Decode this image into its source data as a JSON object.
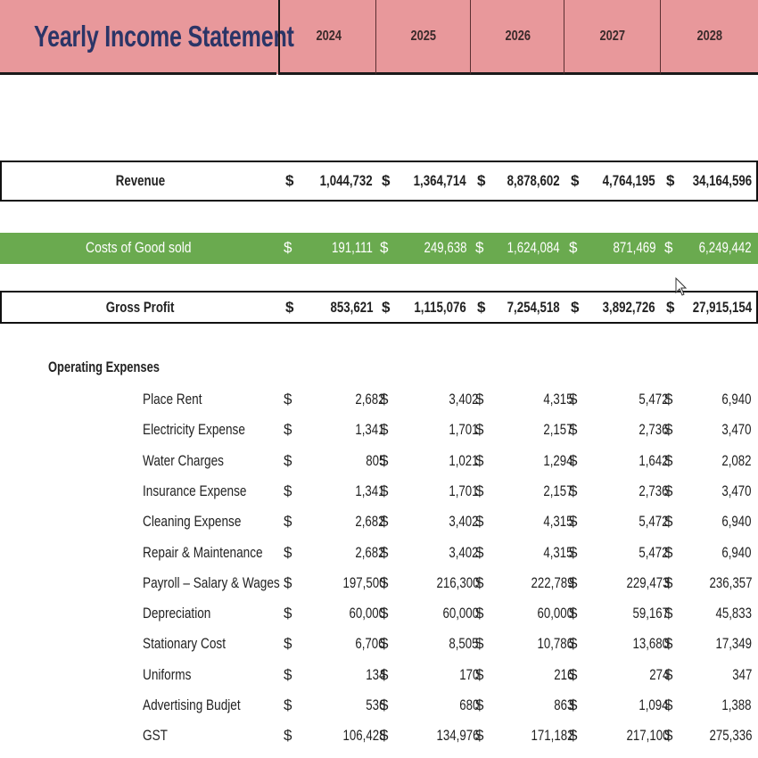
{
  "header": {
    "title": "Yearly Income Statement",
    "years": [
      "2024",
      "2025",
      "2026",
      "2027",
      "2028"
    ]
  },
  "colors": {
    "header_bg": "#e8989b",
    "title_text": "#2b3567",
    "cogs_bg": "#6aaa4f"
  },
  "currency_symbol": "$",
  "summary": {
    "revenue": {
      "label": "Revenue",
      "values": [
        "1,044,732",
        "1,364,714",
        "8,878,602",
        "4,764,195",
        "34,164,596"
      ]
    },
    "cogs": {
      "label": "Costs of Good sold",
      "values": [
        "191,111",
        "249,638",
        "1,624,084",
        "871,469",
        "6,249,442"
      ]
    },
    "gross_profit": {
      "label": "Gross Profit",
      "values": [
        "853,621",
        "1,115,076",
        "7,254,518",
        "3,892,726",
        "27,915,154"
      ]
    }
  },
  "operating_expenses": {
    "title": "Operating Expenses",
    "rows": [
      {
        "label": "Place Rent",
        "values": [
          "2,682",
          "3,402",
          "4,315",
          "5,472",
          "6,940"
        ]
      },
      {
        "label": "Electricity Expense",
        "values": [
          "1,341",
          "1,701",
          "2,157",
          "2,736",
          "3,470"
        ]
      },
      {
        "label": "Water Charges",
        "values": [
          "805",
          "1,021",
          "1,294",
          "1,642",
          "2,082"
        ]
      },
      {
        "label": "Insurance Expense",
        "values": [
          "1,341",
          "1,701",
          "2,157",
          "2,736",
          "3,470"
        ]
      },
      {
        "label": "Cleaning Expense",
        "values": [
          "2,682",
          "3,402",
          "4,315",
          "5,472",
          "6,940"
        ]
      },
      {
        "label": "Repair & Maintenance",
        "values": [
          "2,682",
          "3,402",
          "4,315",
          "5,472",
          "6,940"
        ]
      },
      {
        "label": "Payroll – Salary & Wages",
        "values": [
          "197,500",
          "216,300",
          "222,789",
          "229,473",
          "236,357"
        ]
      },
      {
        "label": "Depreciation",
        "values": [
          "60,000",
          "60,000",
          "60,000",
          "59,167",
          "45,833"
        ]
      },
      {
        "label": "Stationary  Cost",
        "values": [
          "6,706",
          "8,505",
          "10,786",
          "13,680",
          "17,349"
        ]
      },
      {
        "label": "Uniforms",
        "values": [
          "134",
          "170",
          "216",
          "274",
          "347"
        ]
      },
      {
        "label": "Advertising Budjet",
        "values": [
          "536",
          "680",
          "863",
          "1,094",
          "1,388"
        ]
      },
      {
        "label": "GST",
        "values": [
          "106,428",
          "134,976",
          "171,182",
          "217,100",
          "275,336"
        ]
      }
    ]
  }
}
